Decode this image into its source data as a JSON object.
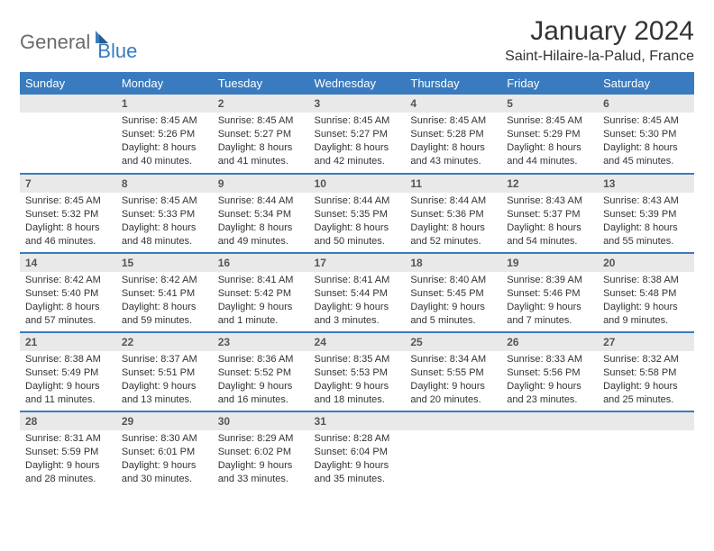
{
  "logo": {
    "text_a": "General",
    "text_b": "Blue",
    "accent": "#3a7bbf",
    "grey": "#6b6b6b"
  },
  "title": "January 2024",
  "location": "Saint-Hilaire-la-Palud, France",
  "colors": {
    "header_bg": "#3a7bbf",
    "header_text": "#ffffff",
    "daynum_bg": "#e9e9e9",
    "rule": "#3a7bbf",
    "body_text": "#333333"
  },
  "days_of_week": [
    "Sunday",
    "Monday",
    "Tuesday",
    "Wednesday",
    "Thursday",
    "Friday",
    "Saturday"
  ],
  "weeks": [
    [
      {
        "n": "",
        "sunrise": "",
        "sunset": "",
        "day_a": "",
        "day_b": ""
      },
      {
        "n": "1",
        "sunrise": "Sunrise: 8:45 AM",
        "sunset": "Sunset: 5:26 PM",
        "day_a": "Daylight: 8 hours",
        "day_b": "and 40 minutes."
      },
      {
        "n": "2",
        "sunrise": "Sunrise: 8:45 AM",
        "sunset": "Sunset: 5:27 PM",
        "day_a": "Daylight: 8 hours",
        "day_b": "and 41 minutes."
      },
      {
        "n": "3",
        "sunrise": "Sunrise: 8:45 AM",
        "sunset": "Sunset: 5:27 PM",
        "day_a": "Daylight: 8 hours",
        "day_b": "and 42 minutes."
      },
      {
        "n": "4",
        "sunrise": "Sunrise: 8:45 AM",
        "sunset": "Sunset: 5:28 PM",
        "day_a": "Daylight: 8 hours",
        "day_b": "and 43 minutes."
      },
      {
        "n": "5",
        "sunrise": "Sunrise: 8:45 AM",
        "sunset": "Sunset: 5:29 PM",
        "day_a": "Daylight: 8 hours",
        "day_b": "and 44 minutes."
      },
      {
        "n": "6",
        "sunrise": "Sunrise: 8:45 AM",
        "sunset": "Sunset: 5:30 PM",
        "day_a": "Daylight: 8 hours",
        "day_b": "and 45 minutes."
      }
    ],
    [
      {
        "n": "7",
        "sunrise": "Sunrise: 8:45 AM",
        "sunset": "Sunset: 5:32 PM",
        "day_a": "Daylight: 8 hours",
        "day_b": "and 46 minutes."
      },
      {
        "n": "8",
        "sunrise": "Sunrise: 8:45 AM",
        "sunset": "Sunset: 5:33 PM",
        "day_a": "Daylight: 8 hours",
        "day_b": "and 48 minutes."
      },
      {
        "n": "9",
        "sunrise": "Sunrise: 8:44 AM",
        "sunset": "Sunset: 5:34 PM",
        "day_a": "Daylight: 8 hours",
        "day_b": "and 49 minutes."
      },
      {
        "n": "10",
        "sunrise": "Sunrise: 8:44 AM",
        "sunset": "Sunset: 5:35 PM",
        "day_a": "Daylight: 8 hours",
        "day_b": "and 50 minutes."
      },
      {
        "n": "11",
        "sunrise": "Sunrise: 8:44 AM",
        "sunset": "Sunset: 5:36 PM",
        "day_a": "Daylight: 8 hours",
        "day_b": "and 52 minutes."
      },
      {
        "n": "12",
        "sunrise": "Sunrise: 8:43 AM",
        "sunset": "Sunset: 5:37 PM",
        "day_a": "Daylight: 8 hours",
        "day_b": "and 54 minutes."
      },
      {
        "n": "13",
        "sunrise": "Sunrise: 8:43 AM",
        "sunset": "Sunset: 5:39 PM",
        "day_a": "Daylight: 8 hours",
        "day_b": "and 55 minutes."
      }
    ],
    [
      {
        "n": "14",
        "sunrise": "Sunrise: 8:42 AM",
        "sunset": "Sunset: 5:40 PM",
        "day_a": "Daylight: 8 hours",
        "day_b": "and 57 minutes."
      },
      {
        "n": "15",
        "sunrise": "Sunrise: 8:42 AM",
        "sunset": "Sunset: 5:41 PM",
        "day_a": "Daylight: 8 hours",
        "day_b": "and 59 minutes."
      },
      {
        "n": "16",
        "sunrise": "Sunrise: 8:41 AM",
        "sunset": "Sunset: 5:42 PM",
        "day_a": "Daylight: 9 hours",
        "day_b": "and 1 minute."
      },
      {
        "n": "17",
        "sunrise": "Sunrise: 8:41 AM",
        "sunset": "Sunset: 5:44 PM",
        "day_a": "Daylight: 9 hours",
        "day_b": "and 3 minutes."
      },
      {
        "n": "18",
        "sunrise": "Sunrise: 8:40 AM",
        "sunset": "Sunset: 5:45 PM",
        "day_a": "Daylight: 9 hours",
        "day_b": "and 5 minutes."
      },
      {
        "n": "19",
        "sunrise": "Sunrise: 8:39 AM",
        "sunset": "Sunset: 5:46 PM",
        "day_a": "Daylight: 9 hours",
        "day_b": "and 7 minutes."
      },
      {
        "n": "20",
        "sunrise": "Sunrise: 8:38 AM",
        "sunset": "Sunset: 5:48 PM",
        "day_a": "Daylight: 9 hours",
        "day_b": "and 9 minutes."
      }
    ],
    [
      {
        "n": "21",
        "sunrise": "Sunrise: 8:38 AM",
        "sunset": "Sunset: 5:49 PM",
        "day_a": "Daylight: 9 hours",
        "day_b": "and 11 minutes."
      },
      {
        "n": "22",
        "sunrise": "Sunrise: 8:37 AM",
        "sunset": "Sunset: 5:51 PM",
        "day_a": "Daylight: 9 hours",
        "day_b": "and 13 minutes."
      },
      {
        "n": "23",
        "sunrise": "Sunrise: 8:36 AM",
        "sunset": "Sunset: 5:52 PM",
        "day_a": "Daylight: 9 hours",
        "day_b": "and 16 minutes."
      },
      {
        "n": "24",
        "sunrise": "Sunrise: 8:35 AM",
        "sunset": "Sunset: 5:53 PM",
        "day_a": "Daylight: 9 hours",
        "day_b": "and 18 minutes."
      },
      {
        "n": "25",
        "sunrise": "Sunrise: 8:34 AM",
        "sunset": "Sunset: 5:55 PM",
        "day_a": "Daylight: 9 hours",
        "day_b": "and 20 minutes."
      },
      {
        "n": "26",
        "sunrise": "Sunrise: 8:33 AM",
        "sunset": "Sunset: 5:56 PM",
        "day_a": "Daylight: 9 hours",
        "day_b": "and 23 minutes."
      },
      {
        "n": "27",
        "sunrise": "Sunrise: 8:32 AM",
        "sunset": "Sunset: 5:58 PM",
        "day_a": "Daylight: 9 hours",
        "day_b": "and 25 minutes."
      }
    ],
    [
      {
        "n": "28",
        "sunrise": "Sunrise: 8:31 AM",
        "sunset": "Sunset: 5:59 PM",
        "day_a": "Daylight: 9 hours",
        "day_b": "and 28 minutes."
      },
      {
        "n": "29",
        "sunrise": "Sunrise: 8:30 AM",
        "sunset": "Sunset: 6:01 PM",
        "day_a": "Daylight: 9 hours",
        "day_b": "and 30 minutes."
      },
      {
        "n": "30",
        "sunrise": "Sunrise: 8:29 AM",
        "sunset": "Sunset: 6:02 PM",
        "day_a": "Daylight: 9 hours",
        "day_b": "and 33 minutes."
      },
      {
        "n": "31",
        "sunrise": "Sunrise: 8:28 AM",
        "sunset": "Sunset: 6:04 PM",
        "day_a": "Daylight: 9 hours",
        "day_b": "and 35 minutes."
      },
      {
        "n": "",
        "sunrise": "",
        "sunset": "",
        "day_a": "",
        "day_b": ""
      },
      {
        "n": "",
        "sunrise": "",
        "sunset": "",
        "day_a": "",
        "day_b": ""
      },
      {
        "n": "",
        "sunrise": "",
        "sunset": "",
        "day_a": "",
        "day_b": ""
      }
    ]
  ]
}
